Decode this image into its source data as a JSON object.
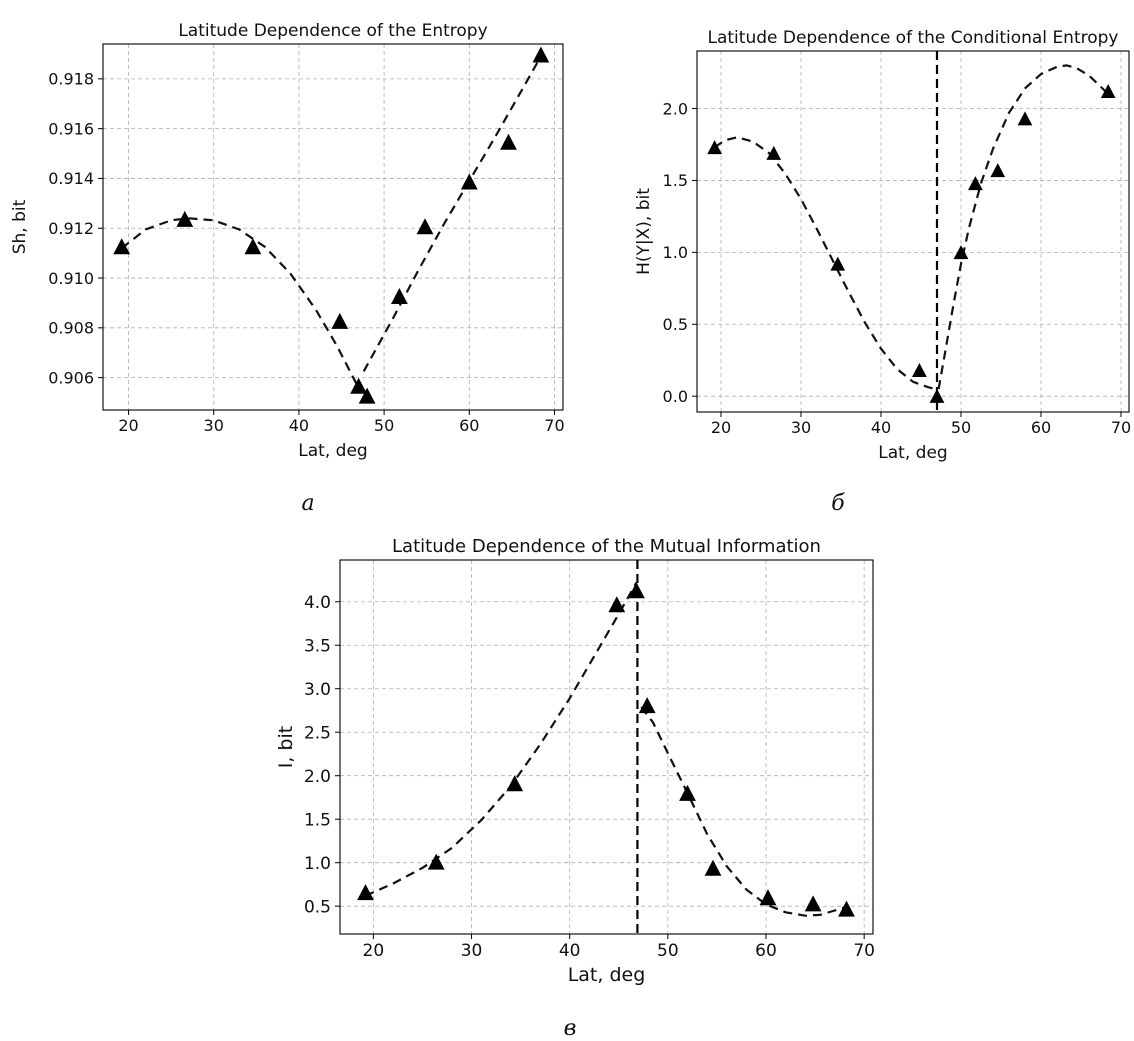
{
  "chart_data": [
    {
      "type": "scatter",
      "title": "Latitude Dependence of the Entropy",
      "xlabel": "Lat, deg",
      "ylabel": "Sh, bit",
      "panel_label": "а",
      "xlim": [
        17,
        71
      ],
      "ylim": [
        0.9047,
        0.9194
      ],
      "xticks": [
        20,
        30,
        40,
        50,
        60,
        70
      ],
      "yticks": [
        0.906,
        0.908,
        0.91,
        0.912,
        0.914,
        0.916,
        0.918
      ],
      "ytick_decimals": 3,
      "grid": true,
      "series": [
        {
          "marker": "triangle",
          "x": [
            19.2,
            26.6,
            34.6,
            44.8,
            47.0,
            48.0,
            51.8,
            54.8,
            60.0,
            64.6,
            68.4
          ],
          "y": [
            0.9112,
            0.9123,
            0.9112,
            0.9082,
            0.9056,
            0.9052,
            0.9092,
            0.912,
            0.9138,
            0.9154,
            0.9189
          ]
        }
      ],
      "fits": [
        {
          "x": [
            19.2,
            22,
            25,
            27,
            30,
            33,
            36,
            39,
            42,
            44.5,
            46.9
          ],
          "y": [
            0.9112,
            0.91195,
            0.91232,
            0.9124,
            0.91232,
            0.91195,
            0.91125,
            0.91018,
            0.90872,
            0.90725,
            0.90565
          ]
        },
        {
          "x": [
            47.6,
            51,
            54,
            57,
            60,
            63,
            66,
            68.4
          ],
          "y": [
            0.90625,
            0.90835,
            0.9103,
            0.91215,
            0.9139,
            0.91565,
            0.91745,
            0.9189
          ]
        }
      ],
      "vlines": []
    },
    {
      "type": "scatter",
      "title": "Latitude Dependence of the Conditional Entropy",
      "xlabel": "Lat, deg",
      "ylabel": "H(Y|X), bit",
      "panel_label": "б",
      "xlim": [
        17,
        71
      ],
      "ylim": [
        -0.11,
        2.4
      ],
      "xticks": [
        20,
        30,
        40,
        50,
        60,
        70
      ],
      "yticks": [
        0.0,
        0.5,
        1.0,
        1.5,
        2.0
      ],
      "ytick_decimals": 1,
      "grid": true,
      "series": [
        {
          "marker": "triangle",
          "x": [
            19.2,
            26.6,
            34.6,
            44.8,
            47.0,
            50.0,
            51.8,
            54.6,
            58.0,
            68.4
          ],
          "y": [
            1.72,
            1.68,
            0.91,
            0.17,
            -0.01,
            0.99,
            1.47,
            1.56,
            1.92,
            2.11
          ]
        }
      ],
      "fits": [
        {
          "x": [
            19.2,
            20.5,
            22,
            24,
            26,
            28,
            30,
            32,
            34,
            36,
            38,
            40,
            42,
            44,
            46,
            46.8
          ],
          "y": [
            1.73,
            1.78,
            1.8,
            1.77,
            1.69,
            1.55,
            1.37,
            1.16,
            0.94,
            0.72,
            0.51,
            0.33,
            0.19,
            0.1,
            0.06,
            0.05
          ]
        },
        {
          "x": [
            47.2,
            48,
            49,
            50,
            51,
            52.5,
            54,
            56,
            58,
            60,
            62,
            63.2,
            64.5,
            66,
            67.5,
            68.4
          ],
          "y": [
            0.05,
            0.3,
            0.62,
            0.92,
            1.17,
            1.48,
            1.72,
            1.97,
            2.14,
            2.24,
            2.29,
            2.3,
            2.28,
            2.23,
            2.15,
            2.1
          ]
        }
      ],
      "vlines": [
        47.0
      ]
    },
    {
      "type": "scatter",
      "title": "Latitude Dependence of the Mutual Information",
      "xlabel": "Lat, deg",
      "ylabel": "I, bit",
      "panel_label": "в",
      "xlim": [
        16.6,
        70.9
      ],
      "ylim": [
        0.18,
        4.48
      ],
      "xticks": [
        20,
        30,
        40,
        50,
        60,
        70
      ],
      "yticks": [
        0.5,
        1.0,
        1.5,
        2.0,
        2.5,
        3.0,
        3.5,
        4.0
      ],
      "ytick_decimals": 1,
      "grid": true,
      "series": [
        {
          "marker": "triangle",
          "x": [
            19.2,
            26.4,
            34.4,
            44.8,
            46.8,
            47.9,
            52.0,
            54.6,
            60.2,
            64.8,
            68.2
          ],
          "y": [
            0.64,
            0.99,
            1.89,
            3.95,
            4.11,
            2.79,
            1.78,
            0.92,
            0.58,
            0.51,
            0.45
          ]
        }
      ],
      "fits": [
        {
          "x": [
            19.2,
            22,
            25,
            28,
            31,
            34,
            37,
            40,
            43,
            45,
            46.8
          ],
          "y": [
            0.62,
            0.76,
            0.94,
            1.17,
            1.49,
            1.88,
            2.36,
            2.89,
            3.47,
            3.86,
            4.22
          ]
        },
        {
          "x": [
            47.3,
            48.5,
            50,
            52,
            54,
            56,
            58,
            60,
            62,
            64,
            65.5,
            67,
            68.2
          ],
          "y": [
            2.79,
            2.61,
            2.26,
            1.8,
            1.33,
            0.96,
            0.69,
            0.52,
            0.43,
            0.39,
            0.4,
            0.45,
            0.49
          ]
        }
      ],
      "vlines": [
        46.9
      ]
    }
  ]
}
